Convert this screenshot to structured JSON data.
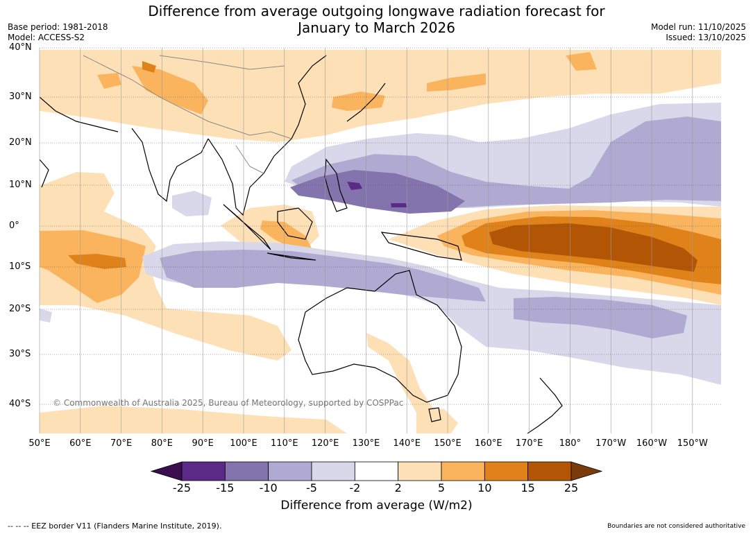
{
  "title": {
    "line1": "Difference from average outgoing longwave radiation forecast for",
    "line2": "January to March 2026"
  },
  "meta": {
    "base_period": "Base period: 1981-2018",
    "model": "Model: ACCESS-S2",
    "model_run": "Model run: 11/10/2025",
    "issued": "Issued: 13/10/2025"
  },
  "axes": {
    "latitudes": [
      "40°N",
      "30°N",
      "20°N",
      "10°N",
      "0°",
      "10°S",
      "20°S",
      "30°S",
      "40°S"
    ],
    "longitudes": [
      "50°E",
      "60°E",
      "70°E",
      "80°E",
      "90°E",
      "100°E",
      "110°E",
      "120°E",
      "130°E",
      "140°E",
      "150°E",
      "160°E",
      "170°E",
      "180°",
      "170°W",
      "160°W",
      "150°W"
    ]
  },
  "copyright": "© Commonwealth of Australia 2025, Bureau of Meteorology, supported by COSPPac",
  "colorbar": {
    "ticks": [
      "-25",
      "-15",
      "-10",
      "-5",
      "-2",
      "2",
      "5",
      "10",
      "15",
      "25"
    ],
    "colors": [
      "#3b0f4f",
      "#5b2a87",
      "#8474ad",
      "#b0aad2",
      "#d8d8ea",
      "#ffffff",
      "#fde0b6",
      "#fbb45e",
      "#e0821a",
      "#b25606",
      "#7a3a0a"
    ],
    "label": "Difference from average (W/m2)"
  },
  "footer": {
    "legend": "--  --  -- EEZ border V11 (Flanders Marine Institute, 2019).",
    "note": "Boundaries are not considered authoritative"
  }
}
